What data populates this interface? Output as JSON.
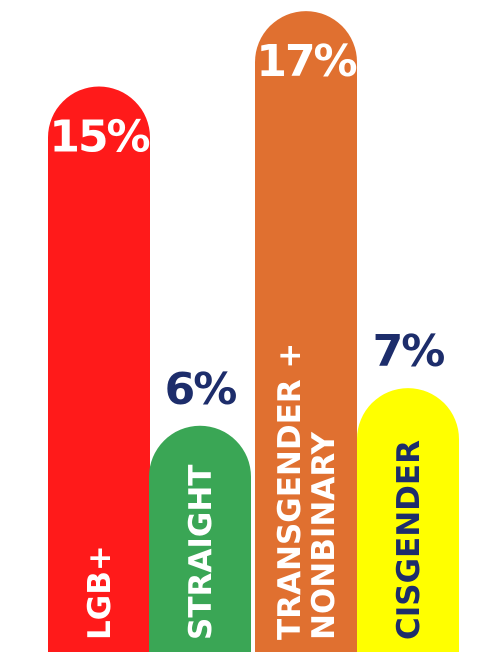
{
  "chart_data": {
    "type": "bar",
    "categories": [
      "LGB+",
      "STRAIGHT",
      "TRANSGENDER + NONBINARY",
      "CISGENDER"
    ],
    "category_lines": [
      [
        "LGB+"
      ],
      [
        "STRAIGHT"
      ],
      [
        "TRANSGENDER +",
        "NONBINARY"
      ],
      [
        "CISGENDER"
      ]
    ],
    "values": [
      15,
      6,
      17,
      7
    ],
    "value_labels": [
      "15%",
      "6%",
      "17%",
      "7%"
    ],
    "colors": [
      "#ff1a1a",
      "#3aa655",
      "#e07030",
      "#ffff00"
    ],
    "value_label_colors": [
      "#ffffff",
      "#1d2d6b",
      "#ffffff",
      "#1d2d6b"
    ],
    "category_label_colors": [
      "#ffffff",
      "#ffffff",
      "#ffffff",
      "#1d2d6b"
    ],
    "value_label_position": [
      "inside",
      "above",
      "inside",
      "above"
    ],
    "ylim": [
      0,
      18
    ],
    "title": "",
    "xlabel": "",
    "ylabel": "",
    "grid": false,
    "legend": "none"
  }
}
